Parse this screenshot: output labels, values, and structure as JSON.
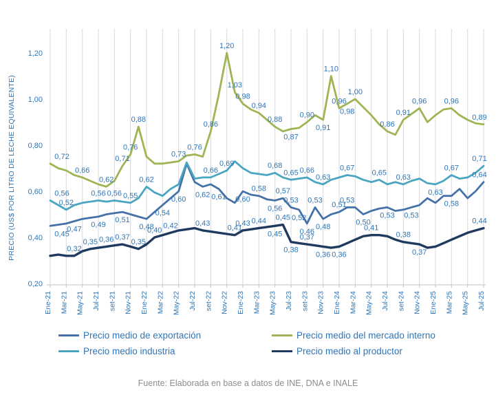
{
  "chart_data": {
    "type": "line",
    "title": "",
    "y_axis_title": "PRECIO (US$ POR LITRO DE LECHE EQUIVALENTE)",
    "ylim": [
      0.2,
      1.2
    ],
    "grid": "vertical",
    "legend_position": "bottom",
    "n_points": 55,
    "y_ticks": [
      {
        "v": 0.2,
        "label": "0,20"
      },
      {
        "v": 0.4,
        "label": "0,40"
      },
      {
        "v": 0.6,
        "label": "0,60"
      },
      {
        "v": 0.8,
        "label": "0,80"
      },
      {
        "v": 1.0,
        "label": "1,00"
      },
      {
        "v": 1.2,
        "label": "1,20"
      }
    ],
    "x_tick_labels": [
      "Ene-21",
      "Mar-21",
      "May-21",
      "Jul-21",
      "set-21",
      "Nov-21",
      "Ene-22",
      "Mar-22",
      "May-22",
      "Jul-22",
      "set-22",
      "Nov-22",
      "Ene-23",
      "Mar-23",
      "May-23",
      "Jul-23",
      "set-23",
      "Nov-23",
      "Ene-24",
      "Mar-24",
      "May-24",
      "Jul-24",
      "set-24",
      "Nov-24",
      "Ene-25",
      "Mar-25",
      "May-25",
      "Jul-25"
    ],
    "series": [
      {
        "name": "Precio medio de exportación",
        "color": "#4472a8",
        "width": 2.8,
        "values": [
          0.45,
          0.455,
          0.46,
          0.47,
          0.48,
          0.485,
          0.49,
          0.5,
          0.505,
          0.51,
          0.5,
          0.49,
          0.48,
          0.51,
          0.54,
          0.57,
          0.6,
          0.72,
          0.64,
          0.62,
          0.63,
          0.61,
          0.57,
          0.55,
          0.6,
          0.585,
          0.58,
          0.565,
          0.56,
          0.57,
          0.53,
          0.52,
          0.46,
          0.53,
          0.48,
          0.5,
          0.51,
          0.53,
          0.53,
          0.5,
          0.515,
          0.525,
          0.53,
          0.515,
          0.52,
          0.53,
          0.54,
          0.57,
          0.55,
          0.58,
          0.58,
          0.61,
          0.57,
          0.6,
          0.64
        ],
        "labels": [
          [
            0,
            "0,45",
            "b"
          ],
          [
            3,
            "0,47",
            "b"
          ],
          [
            6,
            "0,49",
            "b"
          ],
          [
            9,
            "0,51",
            "b"
          ],
          [
            12,
            "0,48",
            "b"
          ],
          [
            14,
            "0,54",
            "b"
          ],
          [
            16,
            "0,60",
            "b"
          ],
          [
            19,
            "0,62",
            "b"
          ],
          [
            21,
            "0,61",
            "b"
          ],
          [
            24,
            "0,60",
            "b"
          ],
          [
            26,
            "0,58",
            "a"
          ],
          [
            28,
            "0,56",
            "b"
          ],
          [
            29,
            "0,57",
            "a"
          ],
          [
            30,
            "0,53",
            "a"
          ],
          [
            31,
            "0,52",
            "b"
          ],
          [
            32,
            "0,46",
            "b"
          ],
          [
            33,
            "0,53",
            "a"
          ],
          [
            34,
            "0,48",
            "b"
          ],
          [
            36,
            "0,51",
            "a"
          ],
          [
            37,
            "0,53",
            "a"
          ],
          [
            39,
            "0,50",
            "b"
          ],
          [
            42,
            "0,53",
            "b"
          ],
          [
            45,
            "0,53",
            "b"
          ],
          [
            50,
            "0,58",
            "b"
          ],
          [
            54,
            "0,64",
            "a"
          ]
        ]
      },
      {
        "name": "Precio medio industria",
        "color": "#4aa5c0",
        "width": 2.8,
        "values": [
          0.56,
          0.54,
          0.52,
          0.54,
          0.55,
          0.555,
          0.56,
          0.555,
          0.56,
          0.555,
          0.55,
          0.57,
          0.62,
          0.595,
          0.58,
          0.61,
          0.63,
          0.725,
          0.655,
          0.66,
          0.66,
          0.675,
          0.69,
          0.73,
          0.7,
          0.68,
          0.675,
          0.67,
          0.68,
          0.66,
          0.65,
          0.655,
          0.66,
          0.64,
          0.63,
          0.65,
          0.66,
          0.67,
          0.665,
          0.65,
          0.64,
          0.65,
          0.63,
          0.64,
          0.63,
          0.645,
          0.655,
          0.635,
          0.63,
          0.645,
          0.67,
          0.655,
          0.66,
          0.68,
          0.71
        ],
        "labels": [
          [
            0,
            "0,56",
            "a"
          ],
          [
            2,
            "0,52",
            "a"
          ],
          [
            6,
            "0,56",
            "a"
          ],
          [
            8,
            "0,56",
            "a"
          ],
          [
            10,
            "0,55",
            "a"
          ],
          [
            12,
            "0,62",
            "a"
          ],
          [
            20,
            "0,66",
            "a"
          ],
          [
            22,
            "0,69",
            "a"
          ],
          [
            28,
            "0,68",
            "a"
          ],
          [
            30,
            "0,65",
            "a"
          ],
          [
            32,
            "0,66",
            "a"
          ],
          [
            34,
            "0,63",
            "a"
          ],
          [
            37,
            "0,67",
            "a"
          ],
          [
            41,
            "0,65",
            "a"
          ],
          [
            44,
            "0,63",
            "a"
          ],
          [
            48,
            "0,63",
            "b"
          ],
          [
            50,
            "0,67",
            "a"
          ],
          [
            54,
            "0,71",
            "a"
          ]
        ]
      },
      {
        "name": "Precio medio del mercado interno",
        "color": "#9fb554",
        "width": 2.8,
        "values": [
          0.72,
          0.7,
          0.69,
          0.67,
          0.66,
          0.645,
          0.63,
          0.62,
          0.645,
          0.71,
          0.76,
          0.88,
          0.75,
          0.72,
          0.72,
          0.725,
          0.73,
          0.755,
          0.76,
          0.75,
          0.86,
          1.02,
          1.2,
          1.03,
          0.98,
          0.955,
          0.94,
          0.91,
          0.88,
          0.86,
          0.87,
          0.875,
          0.9,
          0.93,
          0.91,
          1.1,
          0.96,
          0.98,
          1.0,
          0.965,
          0.93,
          0.89,
          0.86,
          0.845,
          0.91,
          0.935,
          0.96,
          0.9,
          0.93,
          0.955,
          0.96,
          0.93,
          0.91,
          0.895,
          0.89
        ],
        "labels": [
          [
            0,
            "0,72",
            "a"
          ],
          [
            4,
            "0,66",
            "a"
          ],
          [
            7,
            "0,62",
            "a"
          ],
          [
            9,
            "0,71",
            "a"
          ],
          [
            10,
            "0,76",
            "a"
          ],
          [
            11,
            "0,88",
            "a"
          ],
          [
            16,
            "0,73",
            "a"
          ],
          [
            18,
            "0,76",
            "a"
          ],
          [
            20,
            "0,86",
            "a"
          ],
          [
            22,
            "1,20",
            "a"
          ],
          [
            23,
            "1,03",
            "a"
          ],
          [
            24,
            "0,98",
            "a"
          ],
          [
            26,
            "0,94",
            "a"
          ],
          [
            28,
            "0,88",
            "a"
          ],
          [
            30,
            "0,87",
            "b"
          ],
          [
            32,
            "0,90",
            "a"
          ],
          [
            34,
            "0,91",
            "b"
          ],
          [
            35,
            "1,10",
            "a"
          ],
          [
            36,
            "0,96",
            "a"
          ],
          [
            37,
            "0,98",
            "b"
          ],
          [
            38,
            "1,00",
            "a"
          ],
          [
            42,
            "0,86",
            "a"
          ],
          [
            44,
            "0,91",
            "a"
          ],
          [
            46,
            "0,96",
            "a"
          ],
          [
            50,
            "0,96",
            "a"
          ],
          [
            54,
            "0,89",
            "a"
          ]
        ]
      },
      {
        "name": "Precio medio al productor",
        "color": "#1f3a5f",
        "width": 3.4,
        "values": [
          0.32,
          0.325,
          0.32,
          0.32,
          0.34,
          0.35,
          0.355,
          0.36,
          0.365,
          0.37,
          0.36,
          0.35,
          0.37,
          0.4,
          0.41,
          0.42,
          0.43,
          0.435,
          0.44,
          0.43,
          0.425,
          0.42,
          0.415,
          0.41,
          0.43,
          0.435,
          0.44,
          0.445,
          0.45,
          0.455,
          0.38,
          0.375,
          0.37,
          0.365,
          0.36,
          0.355,
          0.36,
          0.375,
          0.39,
          0.405,
          0.41,
          0.41,
          0.405,
          0.39,
          0.38,
          0.375,
          0.37,
          0.355,
          0.36,
          0.375,
          0.39,
          0.405,
          0.42,
          0.43,
          0.44
        ],
        "labels": [
          [
            3,
            "0,32",
            "a"
          ],
          [
            5,
            "0,35",
            "a"
          ],
          [
            7,
            "0,36",
            "a"
          ],
          [
            9,
            "0,37",
            "a"
          ],
          [
            11,
            "0,35",
            "a"
          ],
          [
            13,
            "0,40",
            "a"
          ],
          [
            15,
            "0,42",
            "a"
          ],
          [
            19,
            "0,43",
            "a"
          ],
          [
            23,
            "0,41",
            "a"
          ],
          [
            24,
            "0,43",
            "a"
          ],
          [
            26,
            "0,44",
            "a"
          ],
          [
            28,
            "0,45",
            "b"
          ],
          [
            29,
            "0,45",
            "a"
          ],
          [
            30,
            "0,38",
            "b"
          ],
          [
            32,
            "0,37",
            "a"
          ],
          [
            34,
            "0,36",
            "b"
          ],
          [
            36,
            "0,36",
            "b"
          ],
          [
            40,
            "0,41",
            "a"
          ],
          [
            44,
            "0,38",
            "a"
          ],
          [
            46,
            "0,37",
            "b"
          ],
          [
            54,
            "0,44",
            "a"
          ]
        ]
      }
    ]
  },
  "legend_order": [
    0,
    2,
    1,
    3
  ],
  "footer": {
    "source": "Fuente: Elaborada en base a datos de INE, DNA e INALE"
  },
  "colors": {
    "axis_text": "#2e75b6",
    "data_label": "#2e75b6",
    "grid": "#d9d9d9",
    "axis_line": "#bfbfbf",
    "footer_text": "#8c8c8c",
    "background": "#ffffff"
  }
}
